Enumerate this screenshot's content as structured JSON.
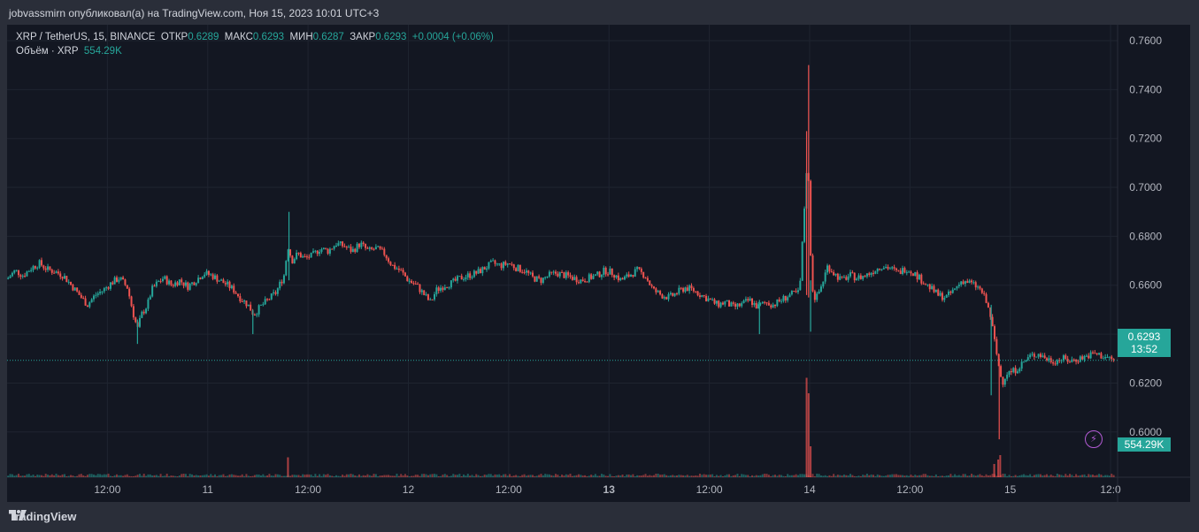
{
  "header": {
    "publish_line": "jobvassmirn опубликовал(а) на TradingView.com, Ноя 15, 2023 10:01 UTC+3"
  },
  "legend": {
    "symbol": "XRP / TetherUS, 15, BINANCE",
    "open_label": "ОТКР",
    "open_value": "0.6289",
    "high_label": "МАКС",
    "high_value": "0.6293",
    "low_label": "МИН",
    "low_value": "0.6287",
    "close_label": "ЗАКР",
    "close_value": "0.6293",
    "change": "+0.0004 (+0.06%)",
    "volume_label": "Объём · XRP",
    "volume_value": "554.29K"
  },
  "price_tag": {
    "price": "0.6293",
    "countdown": "13:52"
  },
  "volume_tag": {
    "value": "554.29K"
  },
  "footer": {
    "brand": "TradingView"
  },
  "colors": {
    "up": "#26a69a",
    "down": "#ef5350",
    "background": "#131722",
    "grid": "#1f2430"
  },
  "chart_data": {
    "type": "candlestick",
    "y_ticks": [
      "0.7600",
      "0.7400",
      "0.7200",
      "0.7000",
      "0.6800",
      "0.6600",
      "0.6400",
      "0.6200",
      "0.6000"
    ],
    "y_tick_values": [
      0.76,
      0.74,
      0.72,
      0.7,
      0.68,
      0.66,
      0.64,
      0.62,
      0.6
    ],
    "ylim": [
      0.5815,
      0.7665
    ],
    "x_ticks": [
      {
        "label": "12:00",
        "t": 0.5,
        "bold": false
      },
      {
        "label": "11",
        "t": 1.0,
        "bold": false
      },
      {
        "label": "12:00",
        "t": 1.5,
        "bold": false
      },
      {
        "label": "12",
        "t": 2.0,
        "bold": false
      },
      {
        "label": "12:00",
        "t": 2.5,
        "bold": false
      },
      {
        "label": "13",
        "t": 3.0,
        "bold": true
      },
      {
        "label": "12:00",
        "t": 3.5,
        "bold": false
      },
      {
        "label": "14",
        "t": 4.0,
        "bold": false
      },
      {
        "label": "12:00",
        "t": 4.5,
        "bold": false
      },
      {
        "label": "15",
        "t": 5.0,
        "bold": false
      },
      {
        "label": "12:0",
        "t": 5.5,
        "bold": false
      }
    ],
    "xlim": [
      0.0,
      5.535
    ],
    "close_series": [
      [
        0.0,
        0.6625
      ],
      [
        0.04,
        0.666
      ],
      [
        0.08,
        0.664
      ],
      [
        0.12,
        0.667
      ],
      [
        0.16,
        0.669
      ],
      [
        0.2,
        0.6665
      ],
      [
        0.24,
        0.6655
      ],
      [
        0.28,
        0.664
      ],
      [
        0.32,
        0.66
      ],
      [
        0.36,
        0.656
      ],
      [
        0.4,
        0.652
      ],
      [
        0.44,
        0.656
      ],
      [
        0.48,
        0.658
      ],
      [
        0.52,
        0.661
      ],
      [
        0.56,
        0.663
      ],
      [
        0.6,
        0.659
      ],
      [
        0.63,
        0.648
      ],
      [
        0.65,
        0.642
      ],
      [
        0.67,
        0.648
      ],
      [
        0.7,
        0.652
      ],
      [
        0.72,
        0.658
      ],
      [
        0.75,
        0.661
      ],
      [
        0.78,
        0.663
      ],
      [
        0.82,
        0.66
      ],
      [
        0.86,
        0.662
      ],
      [
        0.9,
        0.6595
      ],
      [
        0.94,
        0.662
      ],
      [
        0.98,
        0.665
      ],
      [
        1.02,
        0.664
      ],
      [
        1.06,
        0.662
      ],
      [
        1.1,
        0.66
      ],
      [
        1.13,
        0.658
      ],
      [
        1.16,
        0.655
      ],
      [
        1.2,
        0.652
      ],
      [
        1.23,
        0.648
      ],
      [
        1.26,
        0.651
      ],
      [
        1.3,
        0.654
      ],
      [
        1.34,
        0.657
      ],
      [
        1.38,
        0.664
      ],
      [
        1.4,
        0.676
      ],
      [
        1.42,
        0.67
      ],
      [
        1.45,
        0.673
      ],
      [
        1.48,
        0.671
      ],
      [
        1.52,
        0.672
      ],
      [
        1.56,
        0.675
      ],
      [
        1.6,
        0.674
      ],
      [
        1.64,
        0.677
      ],
      [
        1.68,
        0.676
      ],
      [
        1.72,
        0.674
      ],
      [
        1.76,
        0.677
      ],
      [
        1.8,
        0.674
      ],
      [
        1.84,
        0.675
      ],
      [
        1.88,
        0.673
      ],
      [
        1.92,
        0.668
      ],
      [
        1.96,
        0.666
      ],
      [
        2.0,
        0.662
      ],
      [
        2.04,
        0.66
      ],
      [
        2.08,
        0.656
      ],
      [
        2.11,
        0.653
      ],
      [
        2.14,
        0.658
      ],
      [
        2.18,
        0.66
      ],
      [
        2.22,
        0.661
      ],
      [
        2.26,
        0.663
      ],
      [
        2.3,
        0.664
      ],
      [
        2.34,
        0.665
      ],
      [
        2.38,
        0.667
      ],
      [
        2.42,
        0.669
      ],
      [
        2.46,
        0.668
      ],
      [
        2.5,
        0.669
      ],
      [
        2.54,
        0.667
      ],
      [
        2.58,
        0.666
      ],
      [
        2.62,
        0.663
      ],
      [
        2.66,
        0.662
      ],
      [
        2.7,
        0.664
      ],
      [
        2.74,
        0.665
      ],
      [
        2.78,
        0.664
      ],
      [
        2.82,
        0.663
      ],
      [
        2.86,
        0.662
      ],
      [
        2.9,
        0.663
      ],
      [
        2.94,
        0.664
      ],
      [
        2.98,
        0.666
      ],
      [
        3.02,
        0.665
      ],
      [
        3.06,
        0.662
      ],
      [
        3.1,
        0.664
      ],
      [
        3.14,
        0.666
      ],
      [
        3.18,
        0.664
      ],
      [
        3.22,
        0.658
      ],
      [
        3.26,
        0.656
      ],
      [
        3.3,
        0.655
      ],
      [
        3.34,
        0.657
      ],
      [
        3.38,
        0.659
      ],
      [
        3.42,
        0.658
      ],
      [
        3.46,
        0.656
      ],
      [
        3.5,
        0.654
      ],
      [
        3.54,
        0.652
      ],
      [
        3.58,
        0.653
      ],
      [
        3.62,
        0.651
      ],
      [
        3.66,
        0.652
      ],
      [
        3.7,
        0.654
      ],
      [
        3.74,
        0.651
      ],
      [
        3.78,
        0.653
      ],
      [
        3.82,
        0.652
      ],
      [
        3.86,
        0.654
      ],
      [
        3.9,
        0.656
      ],
      [
        3.95,
        0.657
      ],
      [
        3.99,
        0.715
      ],
      [
        4.01,
        0.66
      ],
      [
        4.03,
        0.654
      ],
      [
        4.06,
        0.66
      ],
      [
        4.09,
        0.668
      ],
      [
        4.12,
        0.665
      ],
      [
        4.16,
        0.662
      ],
      [
        4.2,
        0.664
      ],
      [
        4.24,
        0.663
      ],
      [
        4.28,
        0.664
      ],
      [
        4.32,
        0.666
      ],
      [
        4.36,
        0.668
      ],
      [
        4.4,
        0.667
      ],
      [
        4.44,
        0.665
      ],
      [
        4.48,
        0.667
      ],
      [
        4.52,
        0.665
      ],
      [
        4.56,
        0.662
      ],
      [
        4.6,
        0.659
      ],
      [
        4.64,
        0.656
      ],
      [
        4.68,
        0.655
      ],
      [
        4.72,
        0.658
      ],
      [
        4.76,
        0.662
      ],
      [
        4.8,
        0.661
      ],
      [
        4.84,
        0.659
      ],
      [
        4.86,
        0.657
      ],
      [
        4.88,
        0.653
      ],
      [
        4.9,
        0.648
      ],
      [
        4.92,
        0.638
      ],
      [
        4.94,
        0.628
      ],
      [
        4.96,
        0.62
      ],
      [
        4.98,
        0.624
      ],
      [
        5.02,
        0.625
      ],
      [
        5.06,
        0.628
      ],
      [
        5.1,
        0.631
      ],
      [
        5.14,
        0.632
      ],
      [
        5.18,
        0.63
      ],
      [
        5.22,
        0.629
      ],
      [
        5.26,
        0.63
      ],
      [
        5.3,
        0.629
      ],
      [
        5.34,
        0.63
      ],
      [
        5.38,
        0.631
      ],
      [
        5.42,
        0.632
      ],
      [
        5.46,
        0.631
      ],
      [
        5.5,
        0.63
      ],
      [
        5.52,
        0.6293
      ]
    ],
    "spikes": [
      {
        "t": 3.995,
        "high": 0.75,
        "low": 0.655
      },
      {
        "t": 3.985,
        "high": 0.723,
        "low": 0.656
      },
      {
        "t": 1.405,
        "high": 0.69,
        "low": 0.662
      },
      {
        "t": 0.65,
        "high": 0.646,
        "low": 0.636
      },
      {
        "t": 4.005,
        "high": 0.662,
        "low": 0.641
      },
      {
        "t": 4.905,
        "high": 0.652,
        "low": 0.615
      },
      {
        "t": 4.945,
        "high": 0.63,
        "low": 0.597
      },
      {
        "t": 3.75,
        "high": 0.654,
        "low": 0.64
      },
      {
        "t": 1.225,
        "high": 0.65,
        "low": 0.64
      }
    ],
    "last_price": 0.6293,
    "volume_spikes": [
      {
        "t": 1.4,
        "v": 9
      },
      {
        "t": 3.985,
        "v": 45
      },
      {
        "t": 3.995,
        "v": 38
      },
      {
        "t": 4.005,
        "v": 14
      },
      {
        "t": 4.94,
        "v": 8
      },
      {
        "t": 4.95,
        "v": 10
      },
      {
        "t": 4.92,
        "v": 6
      }
    ]
  }
}
